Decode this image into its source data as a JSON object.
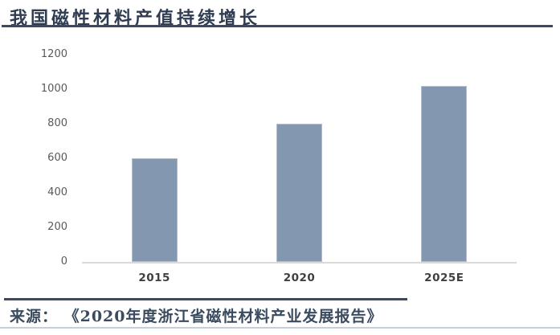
{
  "header": {
    "title": "我国磁性材料产值持续增长"
  },
  "footer": {
    "source": "来源： 《2020年度浙江省磁性材料产业发展报告》"
  },
  "colors": {
    "accent": "#3C4A61",
    "title_text": "#2F3C52",
    "source_text": "#3A4A5F",
    "bar": "#8497B0",
    "bar_edge": "#B3BDCD",
    "axis_label": "#595959",
    "x_label": "#3F3F3F",
    "baseline": "#D9D9D9",
    "bottom_rule": "#C5CEDB"
  },
  "chart_data": {
    "type": "bar",
    "title": "我国磁性材料产值持续增长",
    "categories": [
      "2015",
      "2020",
      "2025E"
    ],
    "values": [
      600,
      800,
      1015
    ],
    "xlabel": "",
    "ylabel": "",
    "ylim": [
      0,
      1200
    ],
    "yticks": [
      0,
      200,
      400,
      600,
      800,
      1000,
      1200
    ],
    "grid": false,
    "legend": false
  }
}
